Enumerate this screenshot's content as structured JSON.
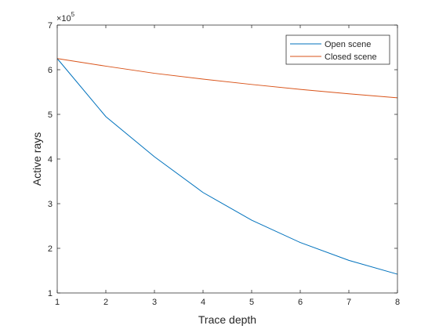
{
  "chart_data": {
    "type": "line",
    "xlabel": "Trace depth",
    "ylabel": "Active rays",
    "exponent_base": "×10",
    "exponent_power": "5",
    "x": [
      1,
      2,
      3,
      4,
      5,
      6,
      7,
      8
    ],
    "xlim": [
      1,
      8
    ],
    "ylim": [
      100000,
      700000
    ],
    "xticks": [
      "1",
      "2",
      "3",
      "4",
      "5",
      "6",
      "7",
      "8"
    ],
    "yticks": [
      {
        "value": 100000,
        "label": "1"
      },
      {
        "value": 200000,
        "label": "2"
      },
      {
        "value": 300000,
        "label": "3"
      },
      {
        "value": 400000,
        "label": "4"
      },
      {
        "value": 500000,
        "label": "5"
      },
      {
        "value": 600000,
        "label": "6"
      },
      {
        "value": 700000,
        "label": "7"
      }
    ],
    "grid": false,
    "legend_position": "top-right",
    "series": [
      {
        "name": "Open scene",
        "color": "#0072BD",
        "values": [
          625000,
          495000,
          405000,
          325000,
          263000,
          213000,
          173000,
          142000
        ]
      },
      {
        "name": "Closed scene",
        "color": "#D95319",
        "values": [
          625000,
          608000,
          592000,
          579000,
          567000,
          556000,
          546000,
          537000
        ]
      }
    ]
  }
}
